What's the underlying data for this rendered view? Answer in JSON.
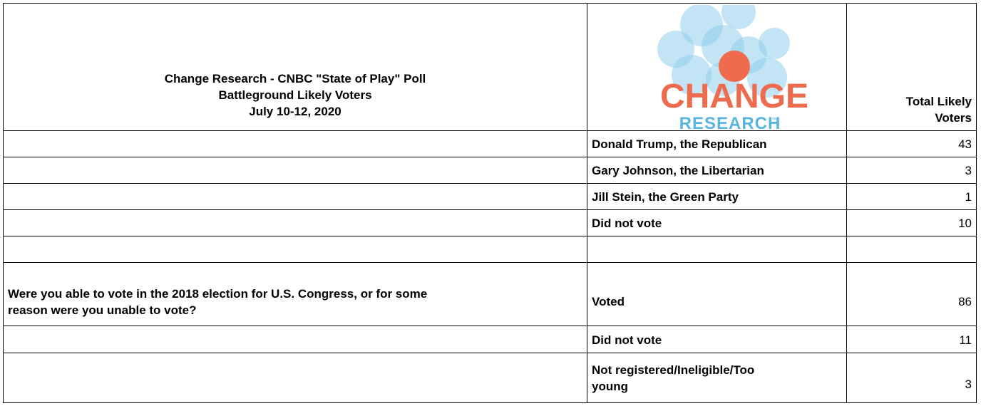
{
  "header": {
    "title_line1": "Change Research - CNBC \"State of Play\" Poll",
    "title_line2": "Battleground Likely Voters",
    "title_line3": "July 10-12, 2020",
    "logo_word1": "CHANGE",
    "logo_word2": "RESEARCH",
    "logo_tm": "™",
    "column_label_line1": "Total Likely",
    "column_label_line2": "Voters"
  },
  "rows": [
    {
      "question": "",
      "answer": "Donald Trump, the Republican",
      "value": "43"
    },
    {
      "question": "",
      "answer": "Gary Johnson, the Libertarian",
      "value": "3"
    },
    {
      "question": "",
      "answer": "Jill Stein, the Green Party",
      "value": "1"
    },
    {
      "question": "",
      "answer": "Did not vote",
      "value": "10"
    },
    {
      "question": "",
      "answer": "",
      "value": ""
    },
    {
      "question_line1": "Were you able to vote in the 2018 election for U.S. Congress, or for some",
      "question_line2": "reason were you unable to vote?",
      "answer": "Voted",
      "value": "86"
    },
    {
      "question": "",
      "answer": "Did not vote",
      "value": "11"
    },
    {
      "question": "",
      "answer_line1": "Not registered/Ineligible/Too",
      "answer_line2": "young",
      "value": "3"
    }
  ],
  "colors": {
    "logo_orange": "#ee6b4d",
    "logo_blue": "#5ab4e0",
    "bubble_blue": "#8fcdeb"
  }
}
